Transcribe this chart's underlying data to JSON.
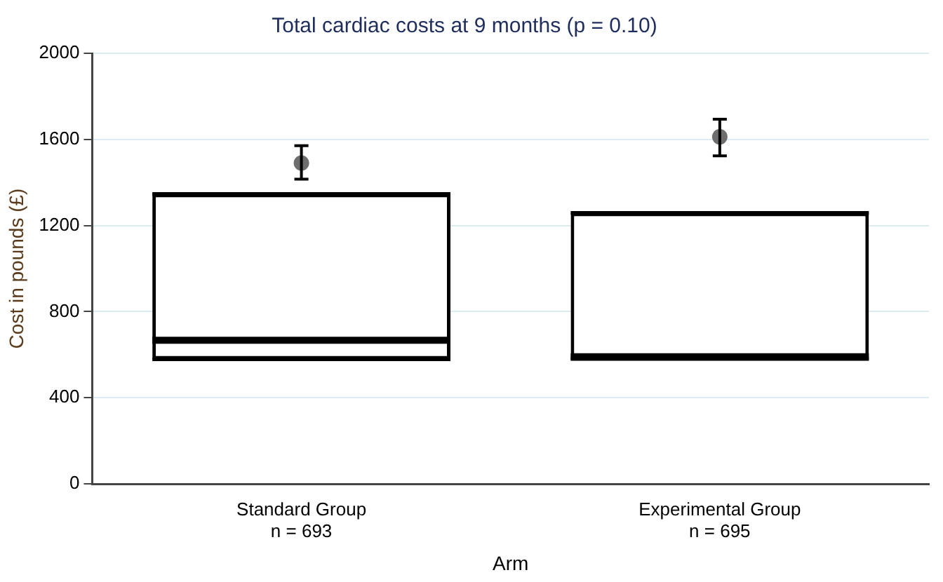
{
  "chart_data": {
    "type": "box",
    "title": "Total cardiac costs at 9 months (p = 0.10)",
    "xlabel": "Arm",
    "ylabel": "Cost in pounds (£)",
    "categories": [
      "Standard Group\nn = 693",
      "Experimental Group\nn = 695"
    ],
    "ylim": [
      0,
      2000
    ],
    "yticks": [
      0,
      400,
      800,
      1200,
      1600,
      2000
    ],
    "grid": "y",
    "legend": false,
    "series": [
      {
        "type": "box",
        "color": "#000000",
        "boxes": [
          {
            "low": 578,
            "q1": 578,
            "median": 667,
            "q3": 1347,
            "high": 1347
          },
          {
            "low": 580,
            "q1": 580,
            "median": 590,
            "q3": 1259,
            "high": 1259
          }
        ]
      },
      {
        "type": "scatter",
        "color": "#6e6e6e",
        "marker": "circle",
        "x": [
          "Standard Group\nn = 693",
          "Experimental Group\nn = 695"
        ],
        "values": [
          1490,
          1612
        ],
        "errors": [
          [
            1415,
            1571
          ],
          [
            1524,
            1694
          ]
        ]
      }
    ]
  }
}
